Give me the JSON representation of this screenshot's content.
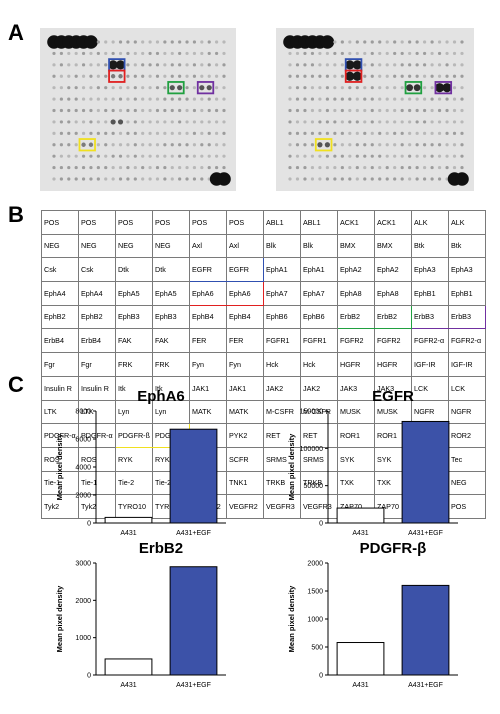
{
  "panels": {
    "a": "A",
    "b": "B",
    "c": "C"
  },
  "colors": {
    "blue": "#3050b0",
    "red": "#e02020",
    "green": "#20a040",
    "purple": "#7030a0",
    "yellow": "#f0e020",
    "bar_fill": "#3c52a8"
  },
  "array_table": [
    [
      "POS",
      "POS",
      "POS",
      "POS",
      "POS",
      "POS",
      "ABL1",
      "ABL1",
      "ACK1",
      "ACK1",
      "ALK",
      "ALK"
    ],
    [
      "NEG",
      "NEG",
      "NEG",
      "NEG",
      "Axl",
      "Axl",
      "Blk",
      "Blk",
      "BMX",
      "BMX",
      "Btk",
      "Btk"
    ],
    [
      "Csk",
      "Csk",
      "Dtk",
      "Dtk",
      "EGFR",
      "EGFR",
      "EphA1",
      "EphA1",
      "EphA2",
      "EphA2",
      "EphA3",
      "EphA3"
    ],
    [
      "EphA4",
      "EphA4",
      "EphA5",
      "EphA5",
      "EphA6",
      "EphA6",
      "EphA7",
      "EphA7",
      "EphA8",
      "EphA8",
      "EphB1",
      "EphB1"
    ],
    [
      "EphB2",
      "EphB2",
      "EphB3",
      "EphB3",
      "EphB4",
      "EphB4",
      "EphB6",
      "EphB6",
      "ErbB2",
      "ErbB2",
      "ErbB3",
      "ErbB3"
    ],
    [
      "ErbB4",
      "ErbB4",
      "FAK",
      "FAK",
      "FER",
      "FER",
      "FGFR1",
      "FGFR1",
      "FGFR2",
      "FGFR2",
      "FGFR2-α",
      "FGFR2-α"
    ],
    [
      "Fgr",
      "Fgr",
      "FRK",
      "FRK",
      "Fyn",
      "Fyn",
      "Hck",
      "Hck",
      "HGFR",
      "HGFR",
      "IGF-IR",
      "IGF-IR"
    ],
    [
      "Insulin R",
      "Insulin R",
      "Itk",
      "Itk",
      "JAK1",
      "JAK1",
      "JAK2",
      "JAK2",
      "JAK3",
      "JAK3",
      "LCK",
      "LCK"
    ],
    [
      "LTK",
      "LTK",
      "Lyn",
      "Lyn",
      "MATK",
      "MATK",
      "M-CSFR",
      "M-CSFR",
      "MUSK",
      "MUSK",
      "NGFR",
      "NGFR"
    ],
    [
      "PDGFR-α",
      "PDGFR-α",
      "PDGFR-ß",
      "PDGFR-ß",
      "PYK2",
      "PYK2",
      "RET",
      "RET",
      "ROR1",
      "ROR1",
      "ROR2",
      "ROR2"
    ],
    [
      "ROS",
      "ROS",
      "RYK",
      "RYK",
      "SCFR",
      "SCFR",
      "SRMS",
      "SRMS",
      "SYK",
      "SYK",
      "Tec",
      "Tec"
    ],
    [
      "Tie-1",
      "Tie-1",
      "Tie-2",
      "Tie-2",
      "TNK1",
      "TNK1",
      "TRKB",
      "TRKB",
      "TXK",
      "TXK",
      "NEG",
      "NEG"
    ],
    [
      "Tyk2",
      "Tyk2",
      "TYRO10",
      "TYRO10",
      "VEGFR2",
      "VEGFR2",
      "VEGFR3",
      "VEGFR3",
      "ZAP70",
      "ZAP70",
      "POS",
      "POS"
    ]
  ],
  "chart_data": [
    {
      "type": "bar",
      "title": "EphA6",
      "ylabel": "Mean pixel density",
      "categories": [
        "A431",
        "A431+EGF"
      ],
      "values": [
        400,
        6700
      ],
      "ylim": [
        0,
        8000
      ],
      "yticks": [
        "0",
        "2000",
        "4000",
        "6000",
        "8000"
      ],
      "fills": [
        "#ffffff",
        "#3c52a8"
      ]
    },
    {
      "type": "bar",
      "title": "EGFR",
      "ylabel": "Mean pixel density",
      "categories": [
        "A431",
        "A431+EGF"
      ],
      "values": [
        20000,
        136000
      ],
      "ylim": [
        0,
        150000
      ],
      "yticks": [
        "0",
        "50000",
        "100000",
        "150000"
      ],
      "fills": [
        "#ffffff",
        "#3c52a8"
      ]
    },
    {
      "type": "bar",
      "title": "ErbB2",
      "ylabel": "Mean pixel density",
      "categories": [
        "A431",
        "A431+EGF"
      ],
      "values": [
        430,
        2900
      ],
      "ylim": [
        0,
        3000
      ],
      "yticks": [
        "0",
        "1000",
        "2000",
        "3000"
      ],
      "fills": [
        "#ffffff",
        "#3c52a8"
      ]
    },
    {
      "type": "bar",
      "title": "PDGFR-β",
      "ylabel": "Mean pixel density",
      "categories": [
        "A431",
        "A431+EGF"
      ],
      "values": [
        580,
        1600
      ],
      "ylim": [
        0,
        2000
      ],
      "yticks": [
        "0",
        "500",
        "1000",
        "1500",
        "2000"
      ],
      "fills": [
        "#ffffff",
        "#3c52a8"
      ]
    }
  ]
}
